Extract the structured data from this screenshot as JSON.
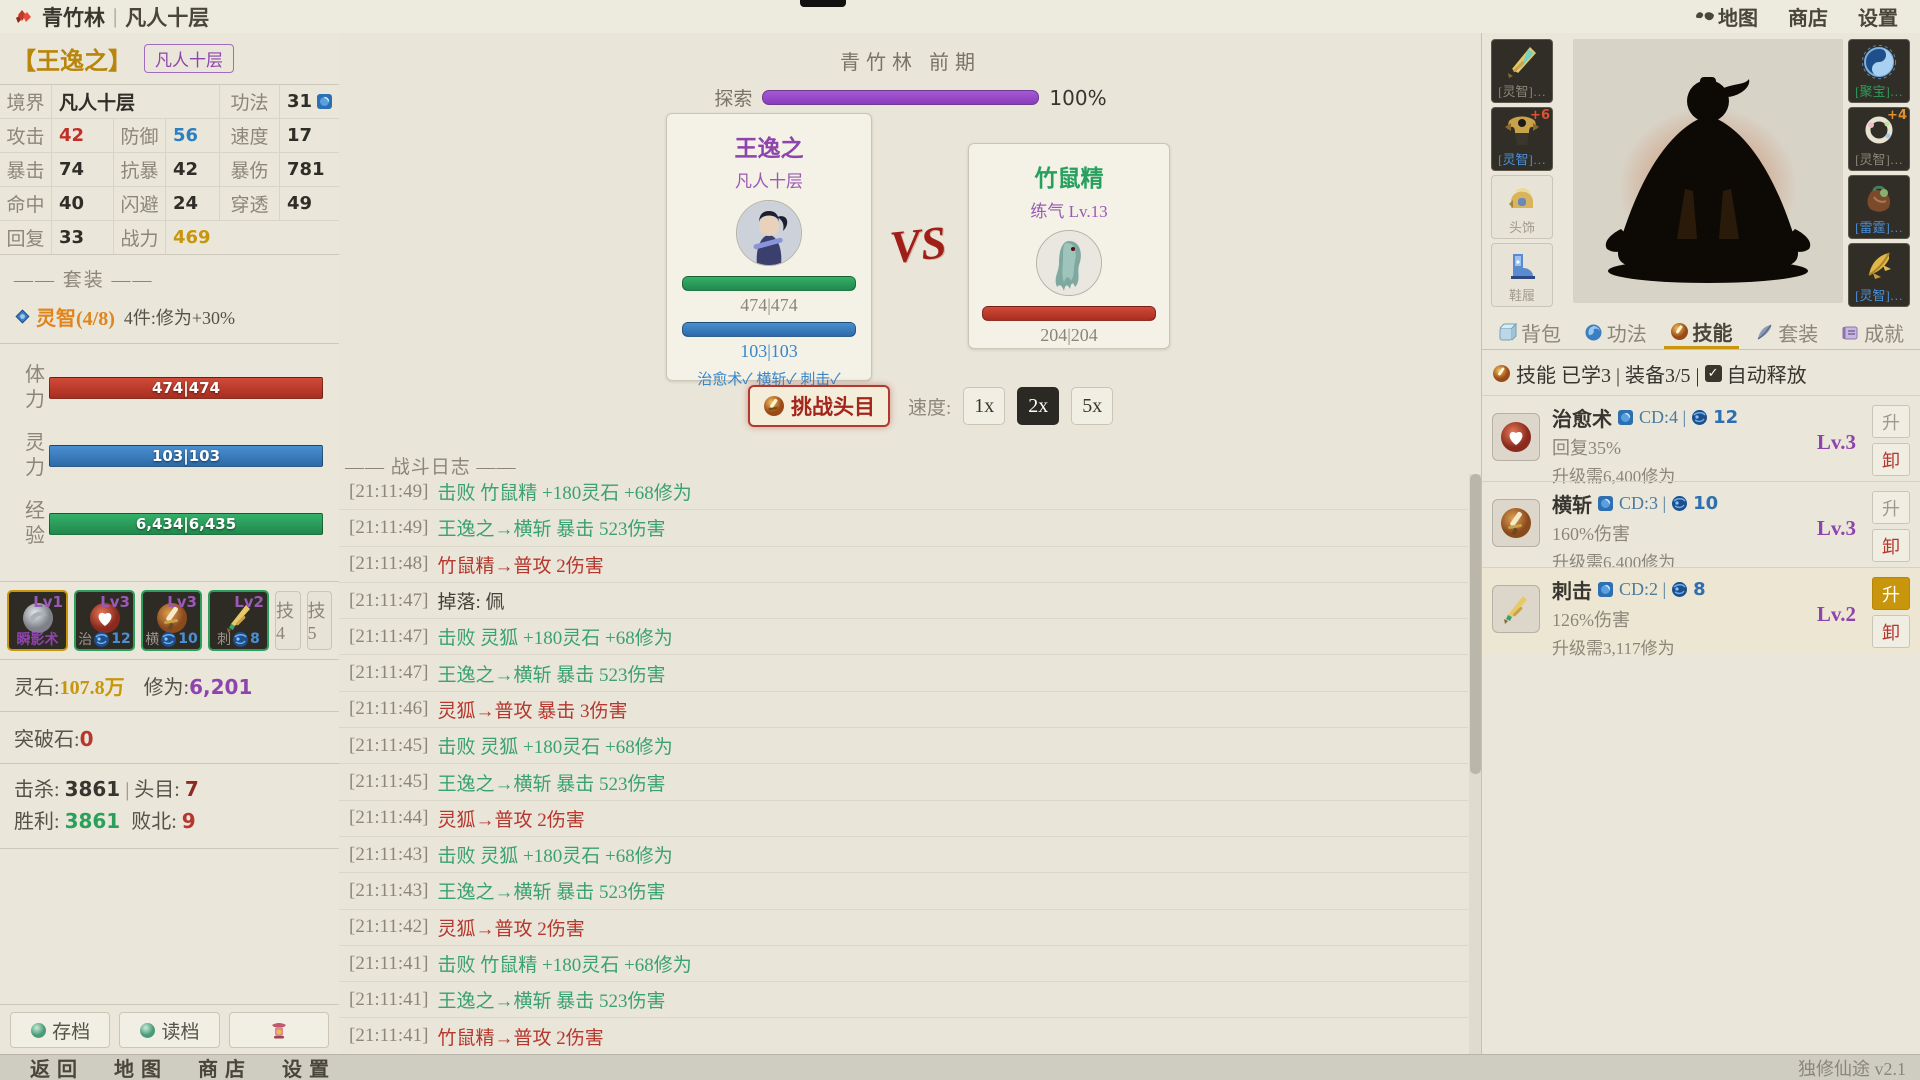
{
  "app": {
    "version_label": "独修仙途 v2.1"
  },
  "top_bar": {
    "location": "青竹林",
    "separator": "|",
    "realm": "凡人十层",
    "nav": [
      {
        "label": "地图",
        "icon": "map-icon"
      },
      {
        "label": "商店"
      },
      {
        "label": "设置"
      }
    ]
  },
  "bottom_bar": {
    "items": [
      "返回",
      "地图",
      "商店",
      "设置"
    ]
  },
  "left_panel": {
    "name": "【王逸之】",
    "badge": "凡人十层",
    "stats_rows": [
      {
        "cells": [
          {
            "label": "境界",
            "value": "凡人十层",
            "wide": true,
            "text": true
          },
          {
            "label": "功法",
            "value": "31",
            "icon": "book-icon"
          }
        ]
      },
      {
        "cells": [
          {
            "label": "攻击",
            "value": "42",
            "color": "#c03028"
          },
          {
            "label": "防御",
            "value": "56",
            "color": "#2d7fc1"
          },
          {
            "label": "速度",
            "value": "17"
          }
        ]
      },
      {
        "cells": [
          {
            "label": "暴击",
            "value": "74"
          },
          {
            "label": "抗暴",
            "value": "42"
          },
          {
            "label": "暴伤",
            "value": "781"
          }
        ]
      },
      {
        "cells": [
          {
            "label": "命中",
            "value": "40"
          },
          {
            "label": "闪避",
            "value": "24"
          },
          {
            "label": "穿透",
            "value": "49"
          }
        ]
      },
      {
        "cells": [
          {
            "label": "回复",
            "value": "33"
          },
          {
            "label": "战力",
            "value": "469",
            "color": "#c8960c",
            "wide": true
          }
        ]
      }
    ],
    "suit_header": "—— 套装 ——",
    "suit_name": "灵智(4/8)",
    "suit_bonus": "4件:修为+30%",
    "bars": [
      {
        "label": "体力",
        "text": "474|474",
        "color_top": "#d04a38",
        "color_bot": "#a82e20"
      },
      {
        "label": "灵力",
        "text": "103|103",
        "color_top": "#4a8fd0",
        "color_bot": "#2d6aa8"
      },
      {
        "label": "经验",
        "text": "6,434|6,435",
        "color_top": "#34b068",
        "color_bot": "#22884c"
      }
    ],
    "skill_slots": [
      {
        "name": "瞬影术",
        "lv": "Lv1",
        "style": "gold",
        "icon": "shadow-orb-icon"
      },
      {
        "name": "治",
        "lv": "Lv3",
        "count": "12",
        "style": "green",
        "icon": "heart-orb-icon"
      },
      {
        "name": "横",
        "lv": "Lv3",
        "count": "10",
        "style": "green",
        "icon": "sword-orb-icon"
      },
      {
        "name": "刺",
        "lv": "Lv2",
        "count": "8",
        "style": "green",
        "icon": "dagger-icon"
      }
    ],
    "empty_slots": [
      "技4",
      "技5"
    ],
    "currency": {
      "lingshi_label": "灵石:",
      "lingshi": "107.8万",
      "xiuwei_label": "修为:",
      "xiuwei": "6,201"
    },
    "breakthrough": {
      "label": "突破石:",
      "value": "0"
    },
    "kills": {
      "kill_label": "击杀:",
      "kills": "3861",
      "divider": "|",
      "boss_label": "头目:",
      "boss": "7"
    },
    "record": {
      "win_label": "胜利:",
      "wins": "3861",
      "lose_label": "败北:",
      "losses": "9"
    },
    "buttons": {
      "save": "存档",
      "load": "读档"
    }
  },
  "battle": {
    "zone_title": "青竹林 前期",
    "explore_label": "探索",
    "explore_pct": "100%",
    "player_card": {
      "name": "王逸之",
      "realm": "凡人十层",
      "hp": "474|474",
      "mp": "103|103",
      "skills": "治愈术✓ 横斩✓ 刺击✓"
    },
    "vs": "VS",
    "enemy_card": {
      "name": "竹鼠精",
      "realm": "练气 Lv.13",
      "hp": "204|204"
    },
    "challenge_boss": "挑战头目",
    "speed_label": "速度:",
    "speeds": [
      {
        "label": "1x",
        "active": false
      },
      {
        "label": "2x",
        "active": true
      },
      {
        "label": "5x",
        "active": false
      }
    ],
    "log_header": "—— 战斗日志 ——",
    "log": [
      {
        "time": "[21:11:49]",
        "msg": "击败 竹鼠精 +180灵石 +68修为",
        "type": "green"
      },
      {
        "time": "[21:11:49]",
        "msg": "王逸之→横斩 暴击 523伤害",
        "type": "green"
      },
      {
        "time": "[21:11:48]",
        "msg": "竹鼠精→普攻 2伤害",
        "type": "red"
      },
      {
        "time": "[21:11:47]",
        "msg": "掉落: 佩",
        "type": "dark"
      },
      {
        "time": "[21:11:47]",
        "msg": "击败 灵狐 +180灵石 +68修为",
        "type": "green"
      },
      {
        "time": "[21:11:47]",
        "msg": "王逸之→横斩 暴击 523伤害",
        "type": "green"
      },
      {
        "time": "[21:11:46]",
        "msg": "灵狐→普攻 暴击 3伤害",
        "type": "red"
      },
      {
        "time": "[21:11:45]",
        "msg": "击败 灵狐 +180灵石 +68修为",
        "type": "green"
      },
      {
        "time": "[21:11:45]",
        "msg": "王逸之→横斩 暴击 523伤害",
        "type": "green"
      },
      {
        "time": "[21:11:44]",
        "msg": "灵狐→普攻 2伤害",
        "type": "red"
      },
      {
        "time": "[21:11:43]",
        "msg": "击败 灵狐 +180灵石 +68修为",
        "type": "green"
      },
      {
        "time": "[21:11:43]",
        "msg": "王逸之→横斩 暴击 523伤害",
        "type": "green"
      },
      {
        "time": "[21:11:42]",
        "msg": "灵狐→普攻 2伤害",
        "type": "red"
      },
      {
        "time": "[21:11:41]",
        "msg": "击败 竹鼠精 +180灵石 +68修为",
        "type": "green"
      },
      {
        "time": "[21:11:41]",
        "msg": "王逸之→横斩 暴击 523伤害",
        "type": "green"
      },
      {
        "time": "[21:11:41]",
        "msg": "竹鼠精→普攻 2伤害",
        "type": "red"
      }
    ]
  },
  "right_panel": {
    "equipment": {
      "left": [
        {
          "label": "[灵智]…",
          "label_color": "#8b8679",
          "style": "dark",
          "icon": "eq-sword-icon"
        },
        {
          "label": "[灵智]…",
          "label_color": "#4a90d9",
          "style": "dark",
          "icon": "eq-armor-icon",
          "badge": "+6",
          "badge_color": "#e0512f"
        },
        {
          "label": "头饰",
          "label_color": "#a09a8c",
          "style": "light",
          "icon": "eq-helmet-icon"
        },
        {
          "label": "鞋履",
          "label_color": "#a09a8c",
          "style": "light",
          "icon": "eq-boots-icon"
        }
      ],
      "right": [
        {
          "label": "[聚宝]…",
          "label_color": "#2e9e5b",
          "style": "dark",
          "icon": "eq-yinyang-icon"
        },
        {
          "label": "[灵智]…",
          "label_color": "#8b8679",
          "style": "dark",
          "icon": "eq-ring-icon",
          "badge": "+4",
          "badge_color": "#e0912f"
        },
        {
          "label": "[雷霆]…",
          "label_color": "#4a90d9",
          "style": "dark",
          "icon": "eq-pouch-icon"
        },
        {
          "label": "[灵智]…",
          "label_color": "#4a90d9",
          "style": "dark",
          "icon": "eq-feather-icon"
        }
      ]
    },
    "tabs": [
      {
        "label": "背包",
        "icon": "bag-icon",
        "active": false
      },
      {
        "label": "功法",
        "icon": "gongfa-icon",
        "active": false
      },
      {
        "label": "技能",
        "icon": "skillorb-icon",
        "active": true
      },
      {
        "label": "套装",
        "icon": "feathertab-icon",
        "active": false
      },
      {
        "label": "成就",
        "icon": "achieve-icon",
        "active": false
      }
    ],
    "skills_header": {
      "prefix": "技能 已学3 | 装备3/5 |",
      "check": "✓",
      "auto": "自动释放"
    },
    "skills": [
      {
        "name": "治愈术",
        "cd": "CD:4 |",
        "cost": "12",
        "desc": "回复35%",
        "lv": "Lv.3",
        "req": "升级需6,400修为",
        "up": "升",
        "down": "卸",
        "up_active": false,
        "icon": "heart-orb-icon"
      },
      {
        "name": "横斩",
        "cd": "CD:3 |",
        "cost": "10",
        "desc": "160%伤害",
        "lv": "Lv.3",
        "req": "升级需6,400修为",
        "up": "升",
        "down": "卸",
        "up_active": false,
        "icon": "sword-orb-icon"
      },
      {
        "name": "刺击",
        "cd": "CD:2 |",
        "cost": "8",
        "desc": "126%伤害",
        "lv": "Lv.2",
        "req": "升级需3,117修为",
        "up": "升",
        "down": "卸",
        "up_active": true,
        "icon": "dagger-icon"
      }
    ]
  }
}
